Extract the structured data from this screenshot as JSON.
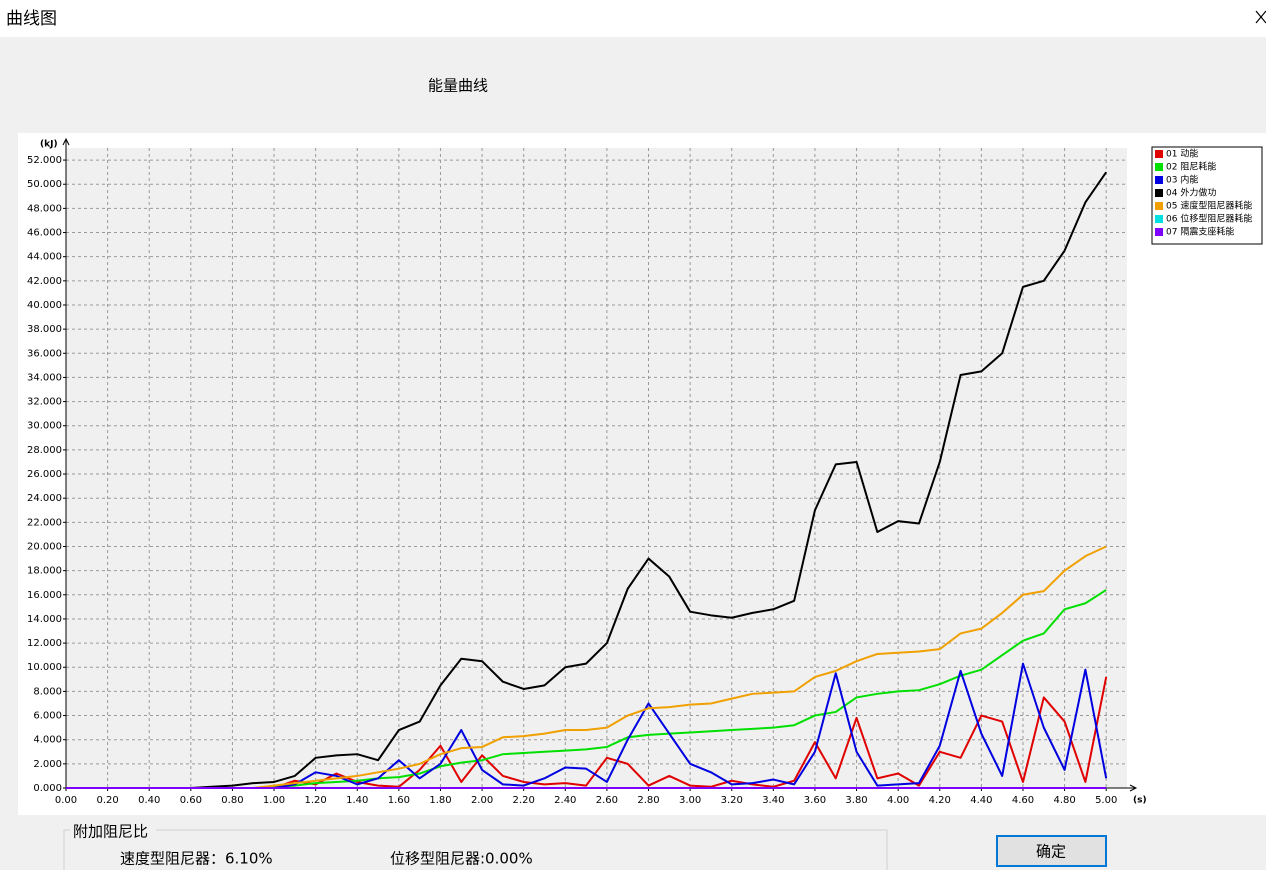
{
  "window": {
    "title": "曲线图"
  },
  "chart_data": {
    "type": "line",
    "title": "能量曲线",
    "y_label": "(kJ)",
    "x_label": "(s)",
    "x": [
      0,
      0.1,
      0.2,
      0.3,
      0.4,
      0.5,
      0.6,
      0.7,
      0.8,
      0.9,
      1.0,
      1.1,
      1.2,
      1.3,
      1.4,
      1.5,
      1.6,
      1.7,
      1.8,
      1.9,
      2.0,
      2.1,
      2.2,
      2.3,
      2.4,
      2.5,
      2.6,
      2.7,
      2.8,
      2.9,
      3.0,
      3.1,
      3.2,
      3.3,
      3.4,
      3.5,
      3.6,
      3.7,
      3.8,
      3.9,
      4.0,
      4.1,
      4.2,
      4.3,
      4.4,
      4.5,
      4.6,
      4.7,
      4.8,
      4.9,
      5.0
    ],
    "series": [
      {
        "name": "01 动能",
        "color": "#e00000",
        "values": [
          0,
          0,
          0,
          0,
          0,
          0,
          0,
          0,
          0,
          0,
          0,
          0.6,
          0.3,
          1.2,
          0.5,
          0.2,
          0.1,
          1.5,
          3.5,
          0.5,
          2.7,
          1.0,
          0.5,
          0.3,
          0.4,
          0.2,
          2.5,
          2.0,
          0.2,
          1.0,
          0.2,
          0.1,
          0.6,
          0.3,
          0.1,
          0.6,
          3.8,
          0.8,
          5.8,
          0.8,
          1.2,
          0.2,
          3.0,
          2.5,
          6.0,
          5.5,
          0.5,
          7.5,
          5.5,
          0.5,
          9.2
        ]
      },
      {
        "name": "02 阻尼耗能",
        "color": "#00e000",
        "values": [
          0,
          0,
          0,
          0,
          0,
          0,
          0,
          0,
          0,
          0,
          0.1,
          0.2,
          0.4,
          0.5,
          0.6,
          0.8,
          0.9,
          1.2,
          1.8,
          2.1,
          2.3,
          2.8,
          2.9,
          3.0,
          3.1,
          3.2,
          3.4,
          4.2,
          4.4,
          4.5,
          4.6,
          4.7,
          4.8,
          4.9,
          5.0,
          5.2,
          6.0,
          6.3,
          7.5,
          7.8,
          8.0,
          8.1,
          8.6,
          9.3,
          9.8,
          11,
          12.2,
          12.8,
          14.8,
          15.3,
          16.4
        ]
      },
      {
        "name": "03 内能",
        "color": "#0000e0",
        "values": [
          0,
          0,
          0,
          0,
          0,
          0,
          0,
          0,
          0,
          0,
          0,
          0.3,
          1.3,
          1.0,
          0.3,
          0.8,
          2.3,
          0.8,
          2.0,
          4.8,
          1.5,
          0.3,
          0.2,
          0.8,
          1.7,
          1.6,
          0.5,
          4.0,
          7.0,
          4.5,
          2.0,
          1.3,
          0.3,
          0.4,
          0.7,
          0.3,
          3.0,
          9.5,
          3.0,
          0.2,
          0.3,
          0.4,
          3.5,
          9.7,
          4.5,
          1.0,
          10.3,
          5.0,
          1.5,
          9.8,
          0.8
        ]
      },
      {
        "name": "04 外力做功",
        "color": "#000000",
        "values": [
          0,
          0,
          0,
          0,
          0,
          0,
          0,
          0.1,
          0.2,
          0.4,
          0.5,
          1.0,
          2.5,
          2.7,
          2.8,
          2.3,
          4.8,
          5.5,
          8.5,
          10.7,
          10.5,
          8.8,
          8.2,
          8.5,
          10,
          10.3,
          12,
          16.5,
          19,
          17.5,
          14.6,
          14.3,
          14.1,
          14.5,
          14.8,
          15.5,
          23,
          26.8,
          27,
          21.2,
          22.1,
          21.9,
          27,
          34.2,
          34.5,
          36,
          41.5,
          42,
          44.5,
          48.5,
          51
        ]
      },
      {
        "name": "05 速度型阻尼器耗能",
        "color": "#f0a000",
        "values": [
          0,
          0,
          0,
          0,
          0,
          0,
          0,
          0,
          0,
          0,
          0.2,
          0.4,
          0.6,
          0.8,
          1.0,
          1.3,
          1.6,
          2.0,
          2.8,
          3.3,
          3.4,
          4.2,
          4.3,
          4.5,
          4.8,
          4.8,
          5.0,
          6.0,
          6.6,
          6.7,
          6.9,
          7.0,
          7.4,
          7.8,
          7.9,
          8.0,
          9.2,
          9.7,
          10.5,
          11.1,
          11.2,
          11.3,
          11.5,
          12.8,
          13.2,
          14.5,
          16,
          16.3,
          18,
          19.2,
          20
        ]
      },
      {
        "name": "06 位移型阻尼器耗能",
        "color": "#00e0e0",
        "values": [
          0,
          0,
          0,
          0,
          0,
          0,
          0,
          0,
          0,
          0,
          0,
          0,
          0,
          0,
          0,
          0,
          0,
          0,
          0,
          0,
          0,
          0,
          0,
          0,
          0,
          0,
          0,
          0,
          0,
          0,
          0,
          0,
          0,
          0,
          0,
          0,
          0,
          0,
          0,
          0,
          0,
          0,
          0,
          0,
          0,
          0,
          0,
          0,
          0,
          0,
          0
        ]
      },
      {
        "name": "07 隔震支座耗能",
        "color": "#8000ff",
        "values": [
          0,
          0,
          0,
          0,
          0,
          0,
          0,
          0,
          0,
          0,
          0,
          0,
          0,
          0,
          0,
          0,
          0,
          0,
          0,
          0,
          0,
          0,
          0,
          0,
          0,
          0,
          0,
          0,
          0,
          0,
          0,
          0,
          0,
          0,
          0,
          0,
          0,
          0,
          0,
          0,
          0,
          0,
          0,
          0,
          0,
          0,
          0,
          0,
          0,
          0,
          0
        ]
      }
    ],
    "xlim": [
      0,
      5.1
    ],
    "ylim": [
      0,
      53
    ],
    "xticks": [
      {
        "value": 0,
        "label": "0.00"
      },
      {
        "value": 0.2,
        "label": "0.20"
      },
      {
        "value": 0.4,
        "label": "0.40"
      },
      {
        "value": 0.6,
        "label": "0.60"
      },
      {
        "value": 0.8,
        "label": "0.80"
      },
      {
        "value": 1,
        "label": "1.00"
      },
      {
        "value": 1.2,
        "label": "1.20"
      },
      {
        "value": 1.4,
        "label": "1.40"
      },
      {
        "value": 1.6,
        "label": "1.60"
      },
      {
        "value": 1.8,
        "label": "1.80"
      },
      {
        "value": 2,
        "label": "2.00"
      },
      {
        "value": 2.2,
        "label": "2.20"
      },
      {
        "value": 2.4,
        "label": "2.40"
      },
      {
        "value": 2.6,
        "label": "2.60"
      },
      {
        "value": 2.8,
        "label": "2.80"
      },
      {
        "value": 3,
        "label": "3.00"
      },
      {
        "value": 3.2,
        "label": "3.20"
      },
      {
        "value": 3.4,
        "label": "3.40"
      },
      {
        "value": 3.6,
        "label": "3.60"
      },
      {
        "value": 3.8,
        "label": "3.80"
      },
      {
        "value": 4,
        "label": "4.00"
      },
      {
        "value": 4.2,
        "label": "4.20"
      },
      {
        "value": 4.4,
        "label": "4.40"
      },
      {
        "value": 4.6,
        "label": "4.60"
      },
      {
        "value": 4.8,
        "label": "4.80"
      },
      {
        "value": 5,
        "label": "5.00"
      }
    ],
    "yticks": [
      {
        "value": 0,
        "label": "0.000"
      },
      {
        "value": 2,
        "label": "2.000"
      },
      {
        "value": 4,
        "label": "4.000"
      },
      {
        "value": 6,
        "label": "6.000"
      },
      {
        "value": 8,
        "label": "8.000"
      },
      {
        "value": 10,
        "label": "10.000"
      },
      {
        "value": 12,
        "label": "12.000"
      },
      {
        "value": 14,
        "label": "14.000"
      },
      {
        "value": 16,
        "label": "16.000"
      },
      {
        "value": 18,
        "label": "18.000"
      },
      {
        "value": 20,
        "label": "20.000"
      },
      {
        "value": 22,
        "label": "22.000"
      },
      {
        "value": 24,
        "label": "24.000"
      },
      {
        "value": 26,
        "label": "26.000"
      },
      {
        "value": 28,
        "label": "28.000"
      },
      {
        "value": 30,
        "label": "30.000"
      },
      {
        "value": 32,
        "label": "32.000"
      },
      {
        "value": 34,
        "label": "34.000"
      },
      {
        "value": 36,
        "label": "36.000"
      },
      {
        "value": 38,
        "label": "38.000"
      },
      {
        "value": 40,
        "label": "40.000"
      },
      {
        "value": 42,
        "label": "42.000"
      },
      {
        "value": 44,
        "label": "44.000"
      },
      {
        "value": 46,
        "label": "46.000"
      },
      {
        "value": 48,
        "label": "48.000"
      },
      {
        "value": 50,
        "label": "50.000"
      },
      {
        "value": 52,
        "label": "52.000"
      }
    ],
    "grid": true,
    "legend": "upper right"
  },
  "footer": {
    "group_title": "附加阻尼比",
    "velocity_damper": "速度型阻尼器：6.10%",
    "displacement_damper": "位移型阻尼器:0.00%",
    "ok_button": "确定"
  }
}
